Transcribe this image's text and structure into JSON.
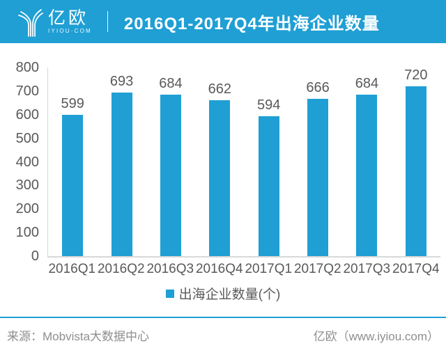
{
  "header": {
    "logo_text": "亿欧",
    "logo_subtext": "IYIOU·COM",
    "title": "2016Q1-2017Q4年出海企业数量"
  },
  "chart_data": {
    "type": "bar",
    "title": "2016Q1-2017Q4年出海企业数量",
    "categories": [
      "2016Q1",
      "2016Q2",
      "2016Q3",
      "2016Q4",
      "2017Q1",
      "2017Q2",
      "2017Q3",
      "2017Q4"
    ],
    "values": [
      599,
      693,
      684,
      662,
      594,
      666,
      684,
      720
    ],
    "ylim": [
      0,
      800
    ],
    "yticks": [
      0,
      100,
      200,
      300,
      400,
      500,
      600,
      700,
      800
    ],
    "xlabel": "",
    "ylabel": "",
    "grid": false,
    "data_labels": true,
    "legend": [
      "出海企业数量(个)"
    ],
    "legend_position": "bottom",
    "bar_color": "#1f9fd4"
  },
  "legend": {
    "label": "出海企业数量(个)"
  },
  "footer": {
    "source": "来源：Mobvista大数据中心",
    "site": "亿欧（www.iyiou.com）"
  },
  "colors": {
    "accent": "#1f9fd4",
    "axis_line": "#d9d9d9",
    "tick_text": "#595959",
    "footer_text": "#8e8e8e"
  }
}
